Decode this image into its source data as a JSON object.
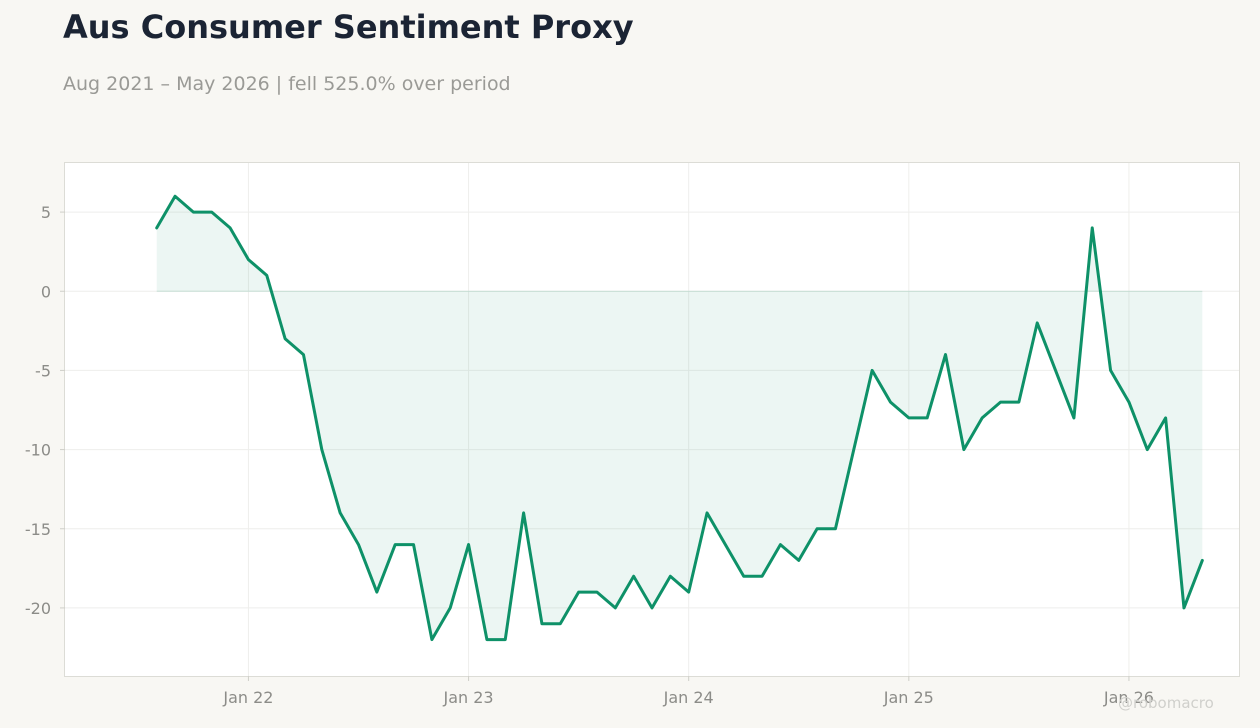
{
  "header": {
    "title": "Aus Consumer Sentiment Proxy",
    "subtitle": "Aug 2021 – May 2026 | fell 525.0% over period"
  },
  "watermark": "@robomacro",
  "colors": {
    "background": "#f8f7f3",
    "plot_background": "#ffffff",
    "line": "#0e9168",
    "fill": "#0e9168",
    "grid": "#eeeeec",
    "axis_text": "#8c8c88",
    "title": "#1b2434",
    "subtitle": "#9a9a96"
  },
  "chart_data": {
    "type": "area",
    "title": "Aus Consumer Sentiment Proxy",
    "subtitle": "Aug 2021 – May 2026 | fell 525.0% over period",
    "xlabel": "",
    "ylabel": "",
    "x": [
      "2021-08",
      "2021-09",
      "2021-10",
      "2021-11",
      "2021-12",
      "2022-01",
      "2022-02",
      "2022-03",
      "2022-04",
      "2022-05",
      "2022-06",
      "2022-07",
      "2022-08",
      "2022-09",
      "2022-10",
      "2022-11",
      "2022-12",
      "2023-01",
      "2023-02",
      "2023-03",
      "2023-04",
      "2023-05",
      "2023-06",
      "2023-07",
      "2023-08",
      "2023-09",
      "2023-10",
      "2023-11",
      "2023-12",
      "2024-01",
      "2024-02",
      "2024-03",
      "2024-04",
      "2024-05",
      "2024-06",
      "2024-07",
      "2024-08",
      "2024-09",
      "2024-10",
      "2024-11",
      "2024-12",
      "2025-01",
      "2025-02",
      "2025-03",
      "2025-04",
      "2025-05",
      "2025-06",
      "2025-07",
      "2025-08",
      "2025-09",
      "2025-10",
      "2025-11",
      "2025-12",
      "2026-01",
      "2026-02",
      "2026-03",
      "2026-04",
      "2026-05"
    ],
    "series": [
      {
        "values": [
          4,
          6,
          5,
          5,
          4,
          2,
          1,
          -3,
          -4,
          -10,
          -14,
          -16,
          -19,
          -16,
          -16,
          -22,
          -20,
          -16,
          -22,
          -22,
          -14,
          -21,
          -21,
          -19,
          -19,
          -20,
          -18,
          -20,
          -18,
          -19,
          -14,
          -16,
          -18,
          -18,
          -16,
          -17,
          -15,
          -15,
          -10,
          -5,
          -7,
          -8,
          -8,
          -4,
          -10,
          -8,
          -7,
          -7,
          -2,
          -5,
          -8,
          4,
          -5,
          -7,
          -10,
          -8,
          -20,
          -17
        ]
      }
    ],
    "x_ticks": [
      {
        "label": "Jan 22",
        "date": "2022-01"
      },
      {
        "label": "Jan 23",
        "date": "2023-01"
      },
      {
        "label": "Jan 24",
        "date": "2024-01"
      },
      {
        "label": "Jan 25",
        "date": "2025-01"
      },
      {
        "label": "Jan 26",
        "date": "2026-01"
      }
    ],
    "y_ticks": [
      5,
      0,
      -5,
      -10,
      -15,
      -20
    ],
    "ylim": [
      -24.3,
      8.1
    ],
    "xlim": [
      "2021-03",
      "2026-07"
    ],
    "fill_baseline": 0,
    "grid": true,
    "legend": "none"
  }
}
